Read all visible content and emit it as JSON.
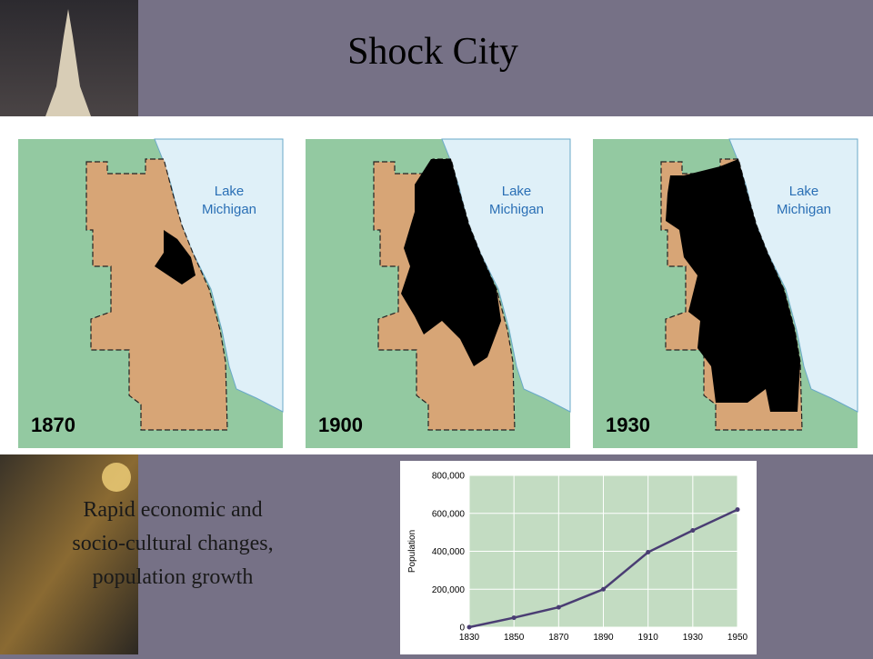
{
  "title": "Shock City",
  "maps": [
    {
      "year": "1870",
      "lake_label": [
        "Lake",
        "Michigan"
      ]
    },
    {
      "year": "1900",
      "lake_label": [
        "Lake",
        "Michigan"
      ]
    },
    {
      "year": "1930",
      "lake_label": [
        "Lake",
        "Michigan"
      ]
    }
  ],
  "caption": [
    "Rapid economic and",
    "socio-cultural changes,",
    "population growth"
  ],
  "chart_data": {
    "type": "line",
    "y_label": "Population",
    "x": [
      1830,
      1850,
      1870,
      1890,
      1910,
      1930,
      1950
    ],
    "series": [
      {
        "name": "Population",
        "color": "#4a3d73",
        "values": [
          0,
          50000,
          105000,
          200000,
          395000,
          510000,
          620000
        ]
      }
    ],
    "xlim": [
      1830,
      1950
    ],
    "xticks": [
      1830,
      1850,
      1870,
      1890,
      1910,
      1930,
      1950
    ],
    "ylim": [
      0,
      800000
    ],
    "yticks": [
      0,
      {
        "value": 200000,
        "label": "200,000"
      },
      {
        "value": 400000,
        "label": "400,000"
      },
      {
        "value": 600000,
        "label": "600,000"
      },
      {
        "value": 800000,
        "label": "800,000"
      }
    ],
    "grid": true,
    "background": "#c3dcc2"
  }
}
